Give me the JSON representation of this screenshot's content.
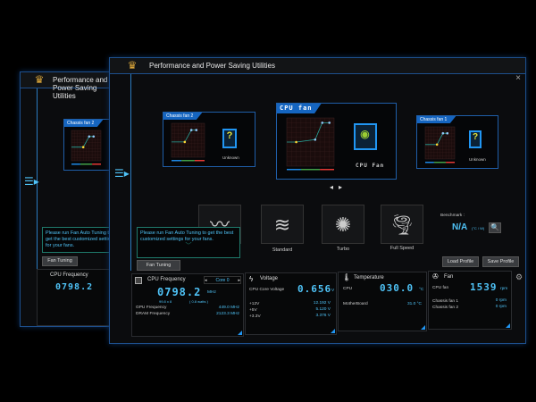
{
  "window": {
    "title": "Performance and Power Saving Utilities",
    "close_icon": "×"
  },
  "fans": [
    {
      "name": "Chassis fan 2",
      "status": "Unknown",
      "curve": [
        [
          40,
          45
        ],
        [
          60,
          80
        ],
        [
          75,
          80
        ]
      ]
    },
    {
      "name": "CPU fan",
      "status": "CPU Fan",
      "curve": [
        [
          20,
          50
        ],
        [
          60,
          55
        ],
        [
          75,
          90
        ],
        [
          90,
          90
        ]
      ]
    },
    {
      "name": "Chassis fan 1",
      "status": "Unknown",
      "curve": [
        [
          40,
          45
        ],
        [
          60,
          80
        ],
        [
          75,
          80
        ]
      ]
    }
  ],
  "nav": {
    "prev": "◂",
    "next": "▸"
  },
  "modes": [
    {
      "label": ""
    },
    {
      "label": "Standard"
    },
    {
      "label": "Turbo"
    },
    {
      "label": "Full Speed"
    }
  ],
  "benchmark": {
    "label": "Benchmark :",
    "value": "N/A",
    "unit": "(°C / W)"
  },
  "tooltip": "Please run Fan Auto Tuning to get the best customized settings for your fans.",
  "buttons": {
    "fan_tuning": "Fan Tuning",
    "load_profile": "Load Profile",
    "save_profile": "Save Profile"
  },
  "cpu": {
    "title": "CPU Frequency",
    "core_select": "Core 0",
    "freq": "0798.2",
    "freq_unit": "MHz",
    "ratio": "99.8  x  8",
    "watts": "( 0.8  watts )",
    "rows": [
      {
        "label": "GPU Frequency",
        "value": "449.0  MHz"
      },
      {
        "label": "DRAM Frequency",
        "value": "2123.3  MHz"
      }
    ]
  },
  "voltage": {
    "title": "Voltage",
    "core_label": "CPU Core Voltage",
    "core_value": "0.656",
    "core_unit": "V",
    "rows": [
      {
        "label": "+12V",
        "value": "12.192  V"
      },
      {
        "label": "+5V",
        "value": "5.120  V"
      },
      {
        "label": "+3.3V",
        "value": "3.376  V"
      }
    ]
  },
  "temperature": {
    "title": "Temperature",
    "cpu_label": "CPU",
    "cpu_value": "030.0",
    "unit": "°C",
    "rows": [
      {
        "label": "MotherBoard",
        "value": "31.0 °C"
      }
    ]
  },
  "fan": {
    "title": "Fan",
    "cpu_label": "CPU fan",
    "cpu_value": "1539",
    "unit": "rpm",
    "rows": [
      {
        "label": "Chassis fan 1",
        "value": "0  rpm"
      },
      {
        "label": "Chassis fan 2",
        "value": "0  rpm"
      }
    ]
  },
  "colors": {
    "accent": "#4fc3f7",
    "border": "#1f5ea8",
    "tab": "#1565c0"
  }
}
